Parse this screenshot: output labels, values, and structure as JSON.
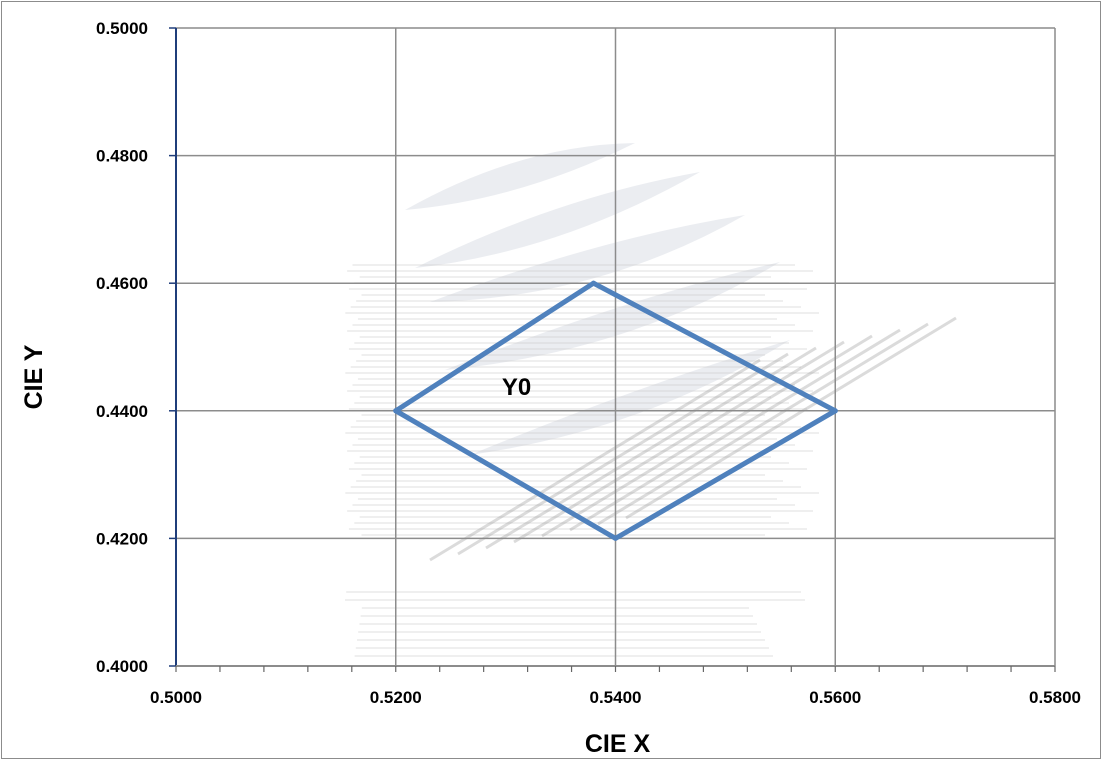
{
  "chart_data": {
    "type": "scatter",
    "title": "",
    "xlabel": "CIE  X",
    "ylabel": "CIE Y",
    "xlim": [
      0.5,
      0.58
    ],
    "ylim": [
      0.4,
      0.5
    ],
    "x_ticks": [
      0.5,
      0.52,
      0.54,
      0.56,
      0.58
    ],
    "y_ticks": [
      0.4,
      0.42,
      0.44,
      0.46,
      0.48,
      0.5
    ],
    "x_tick_labels": [
      "0.5000",
      "0.5200",
      "0.5400",
      "0.5600",
      "0.5800"
    ],
    "y_tick_labels": [
      "0.4000",
      "0.4200",
      "0.4400",
      "0.4600",
      "0.4800",
      "0.5000"
    ],
    "grid": true,
    "legend": false,
    "series": [
      {
        "points": [
          {
            "x": 0.52,
            "y": 0.44
          },
          {
            "x": 0.538,
            "y": 0.46
          },
          {
            "x": 0.56,
            "y": 0.44
          },
          {
            "x": 0.54,
            "y": 0.42
          },
          {
            "x": 0.52,
            "y": 0.44
          }
        ],
        "color": "#4f81bd",
        "closed": true
      }
    ],
    "annotations": [
      {
        "text": "Y0",
        "x": 0.531,
        "y": 0.4425
      }
    ],
    "colors": {
      "grid": "#8c8c8c",
      "axis": "#1f3d7a",
      "series": "#4f81bd"
    }
  }
}
